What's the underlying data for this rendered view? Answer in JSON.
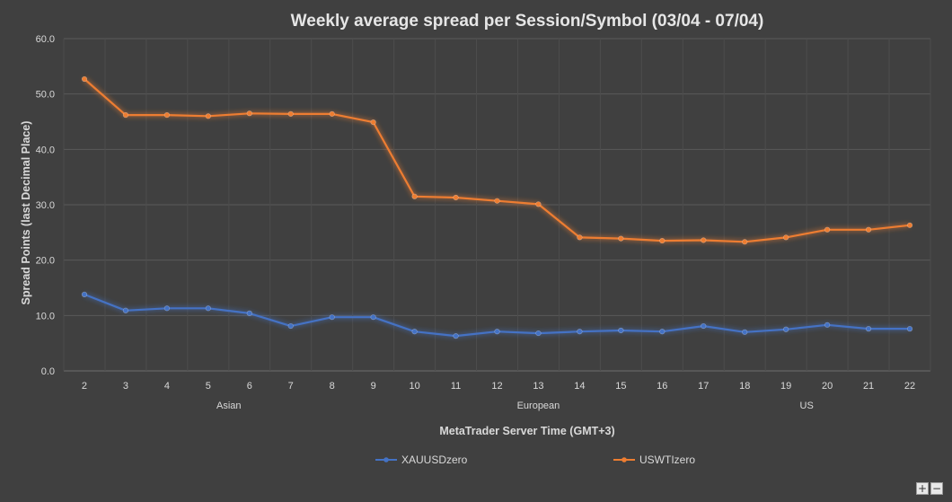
{
  "chart_data": {
    "type": "line",
    "title": "Weekly average spread per Session/Symbol (03/04 - 07/04)",
    "xlabel": "MetaTrader Server Time (GMT+3)",
    "ylabel": "Spread Points  (last Decimal Place)",
    "categories": [
      "2",
      "3",
      "4",
      "5",
      "6",
      "7",
      "8",
      "9",
      "10",
      "11",
      "12",
      "13",
      "14",
      "15",
      "16",
      "17",
      "18",
      "19",
      "20",
      "21",
      "22"
    ],
    "category_groups": [
      {
        "label": "Asian",
        "from": 0,
        "to": 7
      },
      {
        "label": "European",
        "from": 8,
        "to": 14
      },
      {
        "label": "US",
        "from": 15,
        "to": 20
      }
    ],
    "ylim": [
      0,
      60
    ],
    "yticks": [
      "0.0",
      "10.0",
      "20.0",
      "30.0",
      "40.0",
      "50.0",
      "60.0"
    ],
    "grid": true,
    "legend_position": "bottom",
    "series": [
      {
        "name": "XAUUSDzero",
        "color": "#4472c4",
        "values": [
          13.8,
          10.9,
          11.3,
          11.3,
          10.4,
          8.1,
          9.7,
          9.7,
          7.1,
          6.3,
          7.1,
          6.8,
          7.1,
          7.3,
          7.1,
          8.1,
          7.0,
          7.5,
          8.3,
          7.6,
          7.6
        ]
      },
      {
        "name": "USWTIzero",
        "color": "#ed7d31",
        "values": [
          52.7,
          46.2,
          46.2,
          46.0,
          46.5,
          46.4,
          46.4,
          44.9,
          31.5,
          31.3,
          30.7,
          30.1,
          24.1,
          23.9,
          23.5,
          23.6,
          23.3,
          24.1,
          25.5,
          25.5,
          26.3
        ]
      }
    ]
  },
  "zoom": {
    "plus": "+",
    "minus": "−"
  }
}
